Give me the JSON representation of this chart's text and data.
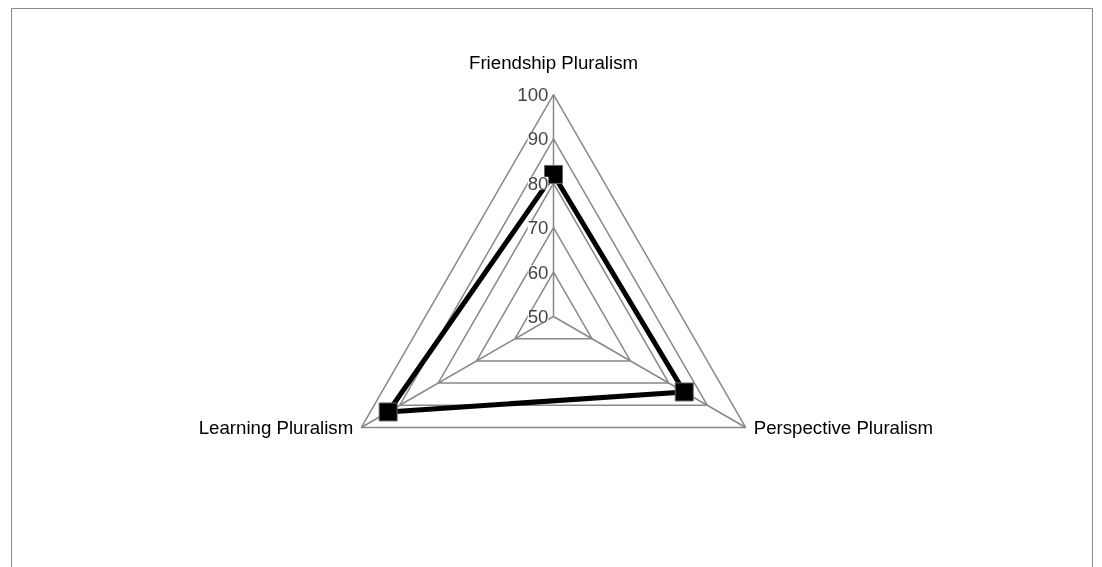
{
  "chart_data": {
    "type": "radar",
    "categories": [
      "Friendship Pluralism",
      "Perspective Pluralism",
      "Learning Pluralism"
    ],
    "series": [
      {
        "color": "#000000",
        "values": [
          82,
          84,
          93
        ]
      }
    ],
    "ylim": [
      50,
      100
    ],
    "yticks": [
      50,
      60,
      70,
      80,
      90,
      100
    ],
    "grid": true,
    "marker": "square",
    "line_style": "solid"
  }
}
